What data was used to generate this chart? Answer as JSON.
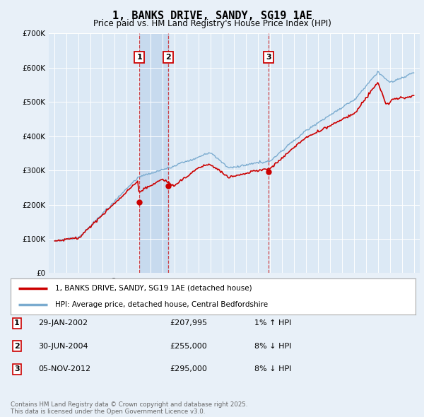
{
  "title": "1, BANKS DRIVE, SANDY, SG19 1AE",
  "subtitle": "Price paid vs. HM Land Registry's House Price Index (HPI)",
  "ylim": [
    0,
    700000
  ],
  "yticks": [
    0,
    100000,
    200000,
    300000,
    400000,
    500000,
    600000,
    700000
  ],
  "bg_color": "#e8f0f8",
  "plot_bg": "#dce9f5",
  "red_color": "#cc0000",
  "blue_color": "#7aabcf",
  "shade_color": "#c5d9ee",
  "grid_color": "#ffffff",
  "sales": [
    {
      "num": 1,
      "date": "29-JAN-2002",
      "price": 207995,
      "pct": "1%",
      "dir": "↑"
    },
    {
      "num": 2,
      "date": "30-JUN-2004",
      "price": 255000,
      "pct": "8%",
      "dir": "↓"
    },
    {
      "num": 3,
      "date": "05-NOV-2012",
      "price": 295000,
      "pct": "8%",
      "dir": "↓"
    }
  ],
  "sale_years": [
    2002.08,
    2004.5,
    2012.85
  ],
  "sale_prices": [
    207995,
    255000,
    295000
  ],
  "legend_entries": [
    "1, BANKS DRIVE, SANDY, SG19 1AE (detached house)",
    "HPI: Average price, detached house, Central Bedfordshire"
  ],
  "footer": "Contains HM Land Registry data © Crown copyright and database right 2025.\nThis data is licensed under the Open Government Licence v3.0."
}
